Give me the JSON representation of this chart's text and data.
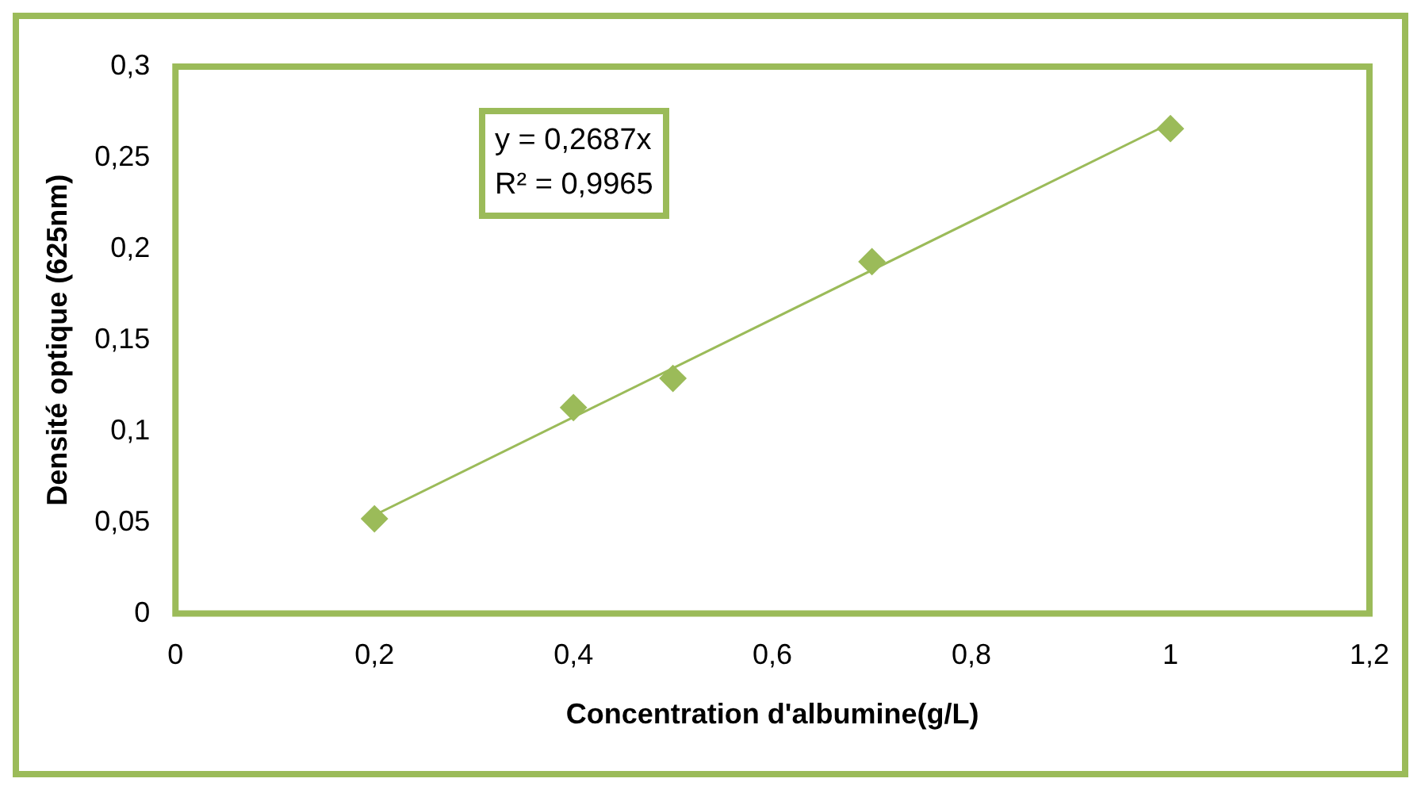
{
  "chart_data": {
    "type": "scatter",
    "xlabel": "Concentration d'albumine(g/L)",
    "ylabel": "Densité optique (625nm)",
    "x": [
      0.2,
      0.4,
      0.5,
      0.7,
      1
    ],
    "series": [
      {
        "type": "scatter",
        "color": "#9bbb59",
        "marker": "diamond",
        "values": [
          0.052,
          0.113,
          0.129,
          0.193,
          0.266
        ]
      },
      {
        "type": "line",
        "color": "#9bbb59",
        "marker": "none",
        "x": [
          0.2,
          1
        ],
        "values": [
          0.054,
          0.269
        ]
      }
    ],
    "xlim": [
      0,
      1.2
    ],
    "xticks": [
      0,
      {
        "value": 0.2,
        "label": "0,2"
      },
      {
        "value": 0.4,
        "label": "0,4"
      },
      {
        "value": 0.6,
        "label": "0,6"
      },
      {
        "value": 0.8,
        "label": "0,8"
      },
      1,
      {
        "value": 1.2,
        "label": "1,2"
      }
    ],
    "ylim": [
      0,
      0.3
    ],
    "yticks": [
      0,
      {
        "value": 0.05,
        "label": "0,05"
      },
      {
        "value": 0.1,
        "label": "0,1"
      },
      {
        "value": 0.15,
        "label": "0,15"
      },
      {
        "value": 0.2,
        "label": "0,2"
      },
      {
        "value": 0.25,
        "label": "0,25"
      },
      {
        "value": 0.3,
        "label": "0,3"
      }
    ],
    "grid": false,
    "legend": false,
    "annotations": [
      "y = 0,2687x",
      "R² = 0,9965"
    ]
  }
}
